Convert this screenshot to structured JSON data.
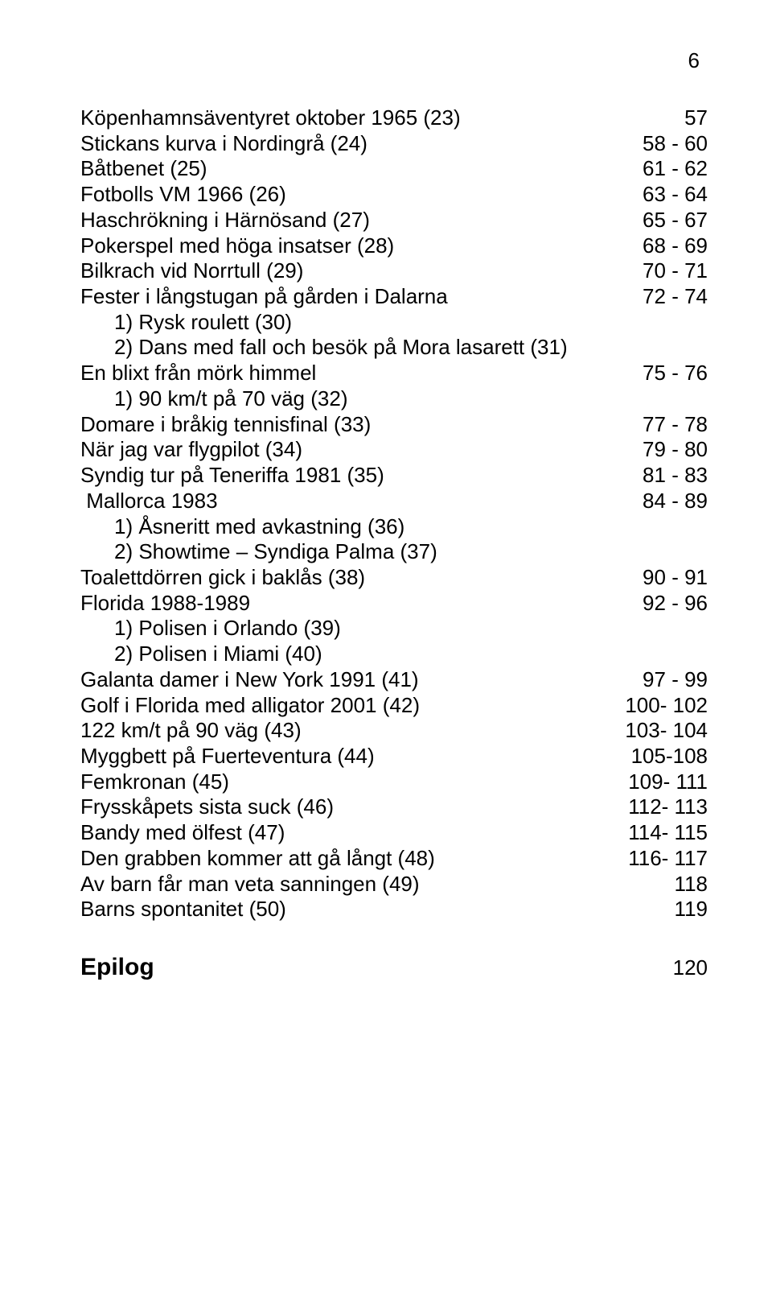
{
  "page_number": "6",
  "entries": [
    {
      "label": "Köpenhamnsäventyret oktober 1965 (23)",
      "pages": "57",
      "indent": 0
    },
    {
      "label": "Stickans kurva i Nordingrå (24)",
      "pages": "58 -  60",
      "indent": 0
    },
    {
      "label": "Båtbenet (25)",
      "pages": "61 -  62",
      "indent": 0
    },
    {
      "label": "Fotbolls VM 1966 (26)",
      "pages": "63 -  64",
      "indent": 0
    },
    {
      "label": "Haschrökning i Härnösand (27)",
      "pages": "65 -  67",
      "indent": 0
    },
    {
      "label": "Pokerspel med höga insatser (28)",
      "pages": "68 -  69",
      "indent": 0
    },
    {
      "label": "Bilkrach vid Norrtull (29)",
      "pages": "70 -  71",
      "indent": 0
    },
    {
      "label": "Fester i långstugan på gården i Dalarna",
      "pages": "72 -  74",
      "indent": 0
    },
    {
      "label": "1) Rysk roulett (30)",
      "pages": "",
      "indent": 1
    },
    {
      "label": "2) Dans med fall och besök på Mora lasarett (31)",
      "pages": "",
      "indent": 1
    },
    {
      "label": "En blixt från mörk himmel",
      "pages": "75 -  76",
      "indent": 0
    },
    {
      "label": "1) 90 km/t på 70 väg (32)",
      "pages": "",
      "indent": 1
    },
    {
      "label": "Domare i bråkig tennisfinal (33)",
      "pages": "77 -  78",
      "indent": 0
    },
    {
      "label": "När jag var flygpilot (34)",
      "pages": "79 -  80",
      "indent": 0
    },
    {
      "label": "Syndig tur på Teneriffa 1981 (35)",
      "pages": "81 -  83",
      "indent": 0
    },
    {
      "label": " Mallorca 1983",
      "pages": "84 -  89",
      "indent": 0
    },
    {
      "label": "1) Åsneritt med avkastning (36)",
      "pages": "",
      "indent": 1
    },
    {
      "label": "2) Showtime – Syndiga Palma (37)",
      "pages": "",
      "indent": 1
    },
    {
      "label": "Toalettdörren gick i baklås (38)",
      "pages": "90 -  91",
      "indent": 0
    },
    {
      "label": "Florida 1988-1989",
      "pages": "92 -  96",
      "indent": 0
    },
    {
      "label": "1) Polisen i Orlando (39)",
      "pages": "",
      "indent": 1
    },
    {
      "label": "2) Polisen i Miami (40)",
      "pages": "",
      "indent": 1
    },
    {
      "label": "Galanta damer i New York 1991 (41)",
      "pages": "97 -  99",
      "indent": 0
    },
    {
      "label": "Golf i Florida med alligator 2001 (42)",
      "pages": "100- 102",
      "indent": 0
    },
    {
      "label": "122 km/t på 90 väg (43)",
      "pages": "103- 104",
      "indent": 0
    },
    {
      "label": "Myggbett på Fuerteventura (44)",
      "pages": "105-108",
      "indent": 0
    },
    {
      "label": "Femkronan (45)",
      "pages": "109- 111",
      "indent": 0
    },
    {
      "label": "Frysskåpets sista suck (46)",
      "pages": "112- 113",
      "indent": 0
    },
    {
      "label": "Bandy med ölfest (47)",
      "pages": "114- 115",
      "indent": 0
    },
    {
      "label": "Den grabben kommer att gå långt (48)",
      "pages": "116- 117",
      "indent": 0
    },
    {
      "label": "Av barn får man veta sanningen (49)",
      "pages": "118",
      "indent": 0
    },
    {
      "label": "Barns spontanitet (50)",
      "pages": "119",
      "indent": 0
    }
  ],
  "epilog": {
    "label": "Epilog",
    "pages": "120"
  }
}
